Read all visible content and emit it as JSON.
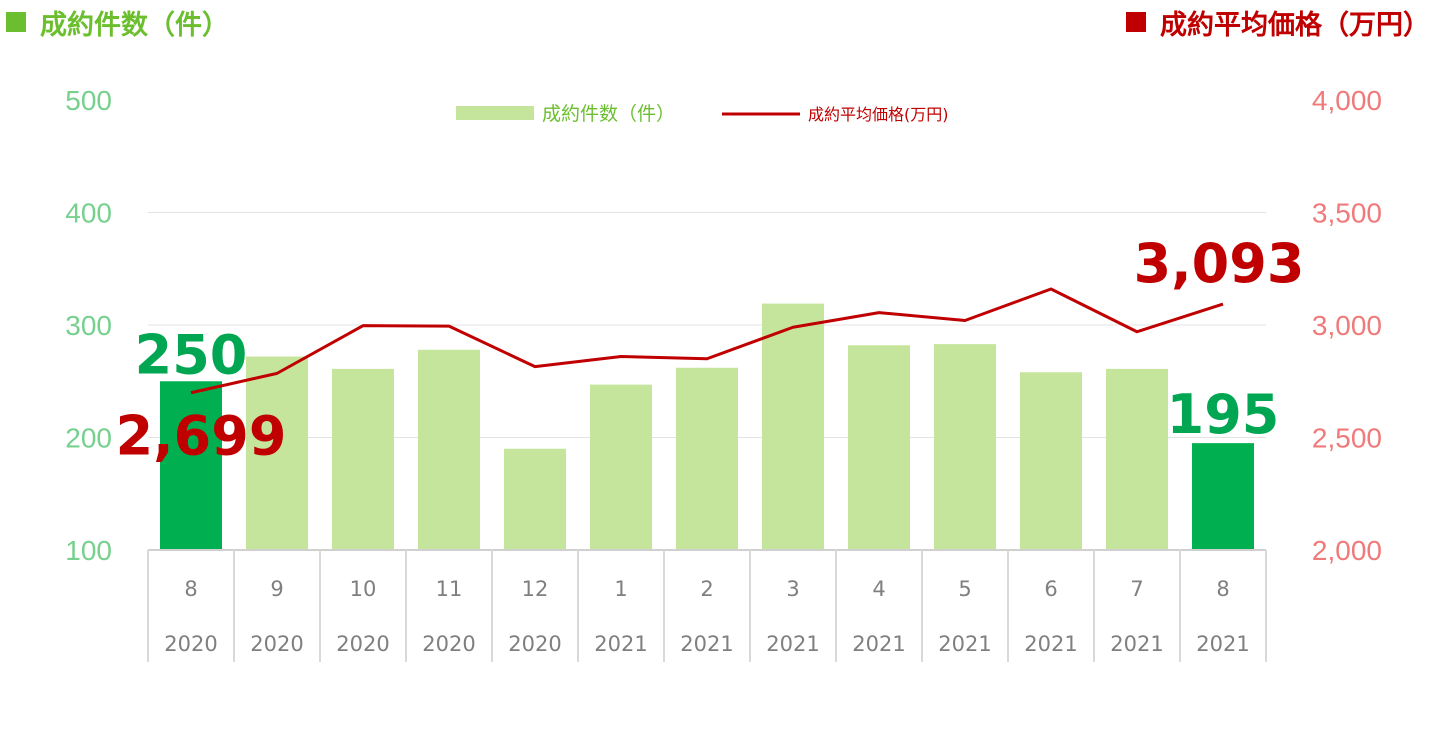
{
  "header": {
    "left_title": "成約件数（件）",
    "right_title": "成約平均価格（万円）"
  },
  "colors": {
    "bar_normal": "#c5e59c",
    "bar_highlight": "#00b050",
    "line": "#c00000",
    "left_axis": "#77d08e",
    "right_axis": "#f07a7a",
    "grid": "#e3e3e3"
  },
  "chart_data": {
    "type": "bar",
    "categories": [
      {
        "month": "8",
        "year": "2020"
      },
      {
        "month": "9",
        "year": "2020"
      },
      {
        "month": "10",
        "year": "2020"
      },
      {
        "month": "11",
        "year": "2020"
      },
      {
        "month": "12",
        "year": "2020"
      },
      {
        "month": "1",
        "year": "2021"
      },
      {
        "month": "2",
        "year": "2021"
      },
      {
        "month": "3",
        "year": "2021"
      },
      {
        "month": "4",
        "year": "2021"
      },
      {
        "month": "5",
        "year": "2021"
      },
      {
        "month": "6",
        "year": "2021"
      },
      {
        "month": "7",
        "year": "2021"
      },
      {
        "month": "8",
        "year": "2021"
      }
    ],
    "series": [
      {
        "name": "成約件数（件）",
        "type": "bar",
        "axis": "left",
        "values": [
          250,
          272,
          261,
          278,
          190,
          247,
          262,
          319,
          282,
          283,
          258,
          261,
          195
        ],
        "highlight": [
          0,
          12
        ]
      },
      {
        "name": "成約平均価格(万円)",
        "type": "line",
        "axis": "right",
        "values": [
          2699,
          2785,
          2997,
          2995,
          2815,
          2860,
          2850,
          2990,
          3055,
          3020,
          3160,
          2970,
          3093
        ]
      }
    ],
    "y_left": {
      "min": 100,
      "max": 500,
      "ticks": [
        "100",
        "200",
        "300",
        "400",
        "500"
      ]
    },
    "y_right": {
      "min": 2000,
      "max": 4000,
      "ticks": [
        "2,000",
        "2,500",
        "3,000",
        "3,500",
        "4,000"
      ]
    },
    "data_labels": {
      "bar_first": "250",
      "bar_last": "195",
      "line_first": "2,699",
      "line_last": "3,093"
    },
    "legend_placement": "top-center",
    "grid": true
  }
}
